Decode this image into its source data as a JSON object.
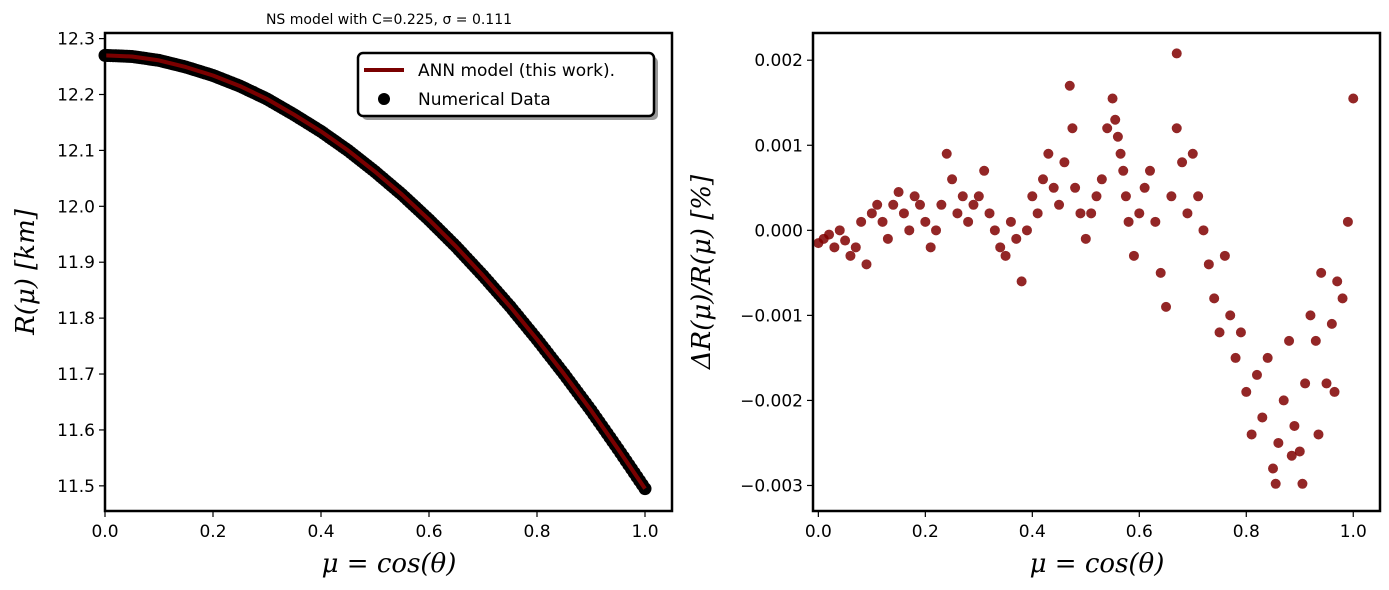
{
  "colors": {
    "model_line": "#7a0000",
    "numerical_marker": "#000000",
    "residual_marker": "#800000"
  },
  "chart_data": [
    {
      "type": "line",
      "title": "NS model with C=0.225, σ = 0.111",
      "xlabel": "μ = cos(θ)",
      "ylabel": "R(μ) [km]",
      "xlim": [
        0.0,
        1.05
      ],
      "ylim": [
        11.455,
        12.31
      ],
      "xticks": [
        "0.0",
        "0.2",
        "0.4",
        "0.6",
        "0.8",
        "1.0"
      ],
      "yticks": [
        "11.5",
        "11.6",
        "11.7",
        "11.8",
        "11.9",
        "12.0",
        "12.1",
        "12.2",
        "12.3"
      ],
      "legend_position": "upper-right",
      "legend": [
        "ANN model (this work).",
        "Numerical Data"
      ],
      "series": [
        {
          "name": "ANN model (this work).",
          "kind": "line",
          "x": [
            0.0,
            0.05,
            0.1,
            0.15,
            0.2,
            0.25,
            0.3,
            0.35,
            0.4,
            0.45,
            0.5,
            0.55,
            0.6,
            0.65,
            0.7,
            0.75,
            0.8,
            0.85,
            0.9,
            0.95,
            1.0
          ],
          "y": [
            12.27,
            12.268,
            12.261,
            12.249,
            12.234,
            12.215,
            12.192,
            12.164,
            12.134,
            12.1,
            12.062,
            12.021,
            11.976,
            11.928,
            11.876,
            11.821,
            11.762,
            11.7,
            11.635,
            11.566,
            11.495
          ]
        },
        {
          "name": "Numerical Data",
          "kind": "scatter",
          "x": [
            0.0,
            0.05,
            0.1,
            0.15,
            0.2,
            0.25,
            0.3,
            0.35,
            0.4,
            0.45,
            0.5,
            0.55,
            0.6,
            0.65,
            0.7,
            0.75,
            0.8,
            0.85,
            0.9,
            0.95,
            1.0
          ],
          "y": [
            12.27,
            12.268,
            12.261,
            12.249,
            12.234,
            12.215,
            12.192,
            12.164,
            12.134,
            12.1,
            12.062,
            12.021,
            11.976,
            11.928,
            11.876,
            11.821,
            11.762,
            11.7,
            11.635,
            11.566,
            11.495
          ]
        }
      ]
    },
    {
      "type": "scatter",
      "title": "",
      "xlabel": "μ = cos(θ)",
      "ylabel": "ΔR(μ)/R(μ) [%]",
      "xlim": [
        -0.01,
        1.05
      ],
      "ylim": [
        -0.0033,
        0.00232
      ],
      "xticks": [
        "0.0",
        "0.2",
        "0.4",
        "0.6",
        "0.8",
        "1.0"
      ],
      "yticks": [
        "−0.003",
        "−0.002",
        "−0.001",
        "0.000",
        "0.001",
        "0.002"
      ],
      "series": [
        {
          "name": "",
          "x": [
            0.0,
            0.01,
            0.02,
            0.03,
            0.04,
            0.05,
            0.06,
            0.07,
            0.08,
            0.09,
            0.1,
            0.11,
            0.12,
            0.13,
            0.14,
            0.15,
            0.16,
            0.17,
            0.18,
            0.19,
            0.2,
            0.21,
            0.22,
            0.23,
            0.24,
            0.25,
            0.26,
            0.27,
            0.28,
            0.29,
            0.3,
            0.31,
            0.32,
            0.33,
            0.34,
            0.35,
            0.36,
            0.37,
            0.38,
            0.39,
            0.4,
            0.41,
            0.42,
            0.43,
            0.44,
            0.45,
            0.46,
            0.47,
            0.475,
            0.48,
            0.49,
            0.5,
            0.51,
            0.52,
            0.53,
            0.54,
            0.55,
            0.555,
            0.56,
            0.565,
            0.57,
            0.575,
            0.58,
            0.59,
            0.6,
            0.61,
            0.62,
            0.63,
            0.64,
            0.65,
            0.66,
            0.67,
            0.68,
            0.69,
            0.7,
            0.71,
            0.72,
            0.73,
            0.74,
            0.75,
            0.76,
            0.77,
            0.78,
            0.79,
            0.8,
            0.81,
            0.82,
            0.83,
            0.84,
            0.85,
            0.86,
            0.87,
            0.88,
            0.89,
            0.9,
            0.91,
            0.92,
            0.93,
            0.94,
            0.95,
            0.96,
            0.97,
            0.98,
            0.99,
            1.0,
            0.67,
            0.855,
            0.885,
            0.905,
            0.935,
            0.965
          ],
          "y": [
            -0.00015,
            -0.0001,
            -5e-05,
            -0.0002,
            0.0,
            -0.00012,
            -0.0003,
            -0.0002,
            0.0001,
            -0.0004,
            0.0002,
            0.0003,
            0.0001,
            -0.0001,
            0.0003,
            0.00045,
            0.0002,
            0.0,
            0.0004,
            0.0003,
            0.0001,
            -0.0002,
            0.0,
            0.0003,
            0.0009,
            0.0006,
            0.0002,
            0.0004,
            0.0001,
            0.0003,
            0.0004,
            0.0007,
            0.0002,
            0.0,
            -0.0002,
            -0.0003,
            0.0001,
            -0.0001,
            -0.0006,
            0.0,
            0.0004,
            0.0002,
            0.0006,
            0.0009,
            0.0005,
            0.0003,
            0.0008,
            0.0017,
            0.0012,
            0.0005,
            0.0002,
            -0.0001,
            0.0002,
            0.0004,
            0.0006,
            0.0012,
            0.00155,
            0.0013,
            0.0011,
            0.0009,
            0.0007,
            0.0004,
            0.0001,
            -0.0003,
            0.0002,
            0.0005,
            0.0007,
            0.0001,
            -0.0005,
            -0.0009,
            0.0004,
            0.0012,
            0.0008,
            0.0002,
            0.0009,
            0.0004,
            0.0,
            -0.0004,
            -0.0008,
            -0.0012,
            -0.0003,
            -0.001,
            -0.0015,
            -0.0012,
            -0.0019,
            -0.0024,
            -0.0017,
            -0.0022,
            -0.0015,
            -0.0028,
            -0.0025,
            -0.002,
            -0.0013,
            -0.0023,
            -0.0026,
            -0.0018,
            -0.001,
            -0.0013,
            -0.0005,
            -0.0018,
            -0.0011,
            -0.0006,
            -0.0008,
            0.0001,
            0.00155,
            0.00208,
            -0.00298,
            -0.00265,
            -0.00298,
            -0.0024,
            -0.0019
          ]
        }
      ]
    }
  ]
}
